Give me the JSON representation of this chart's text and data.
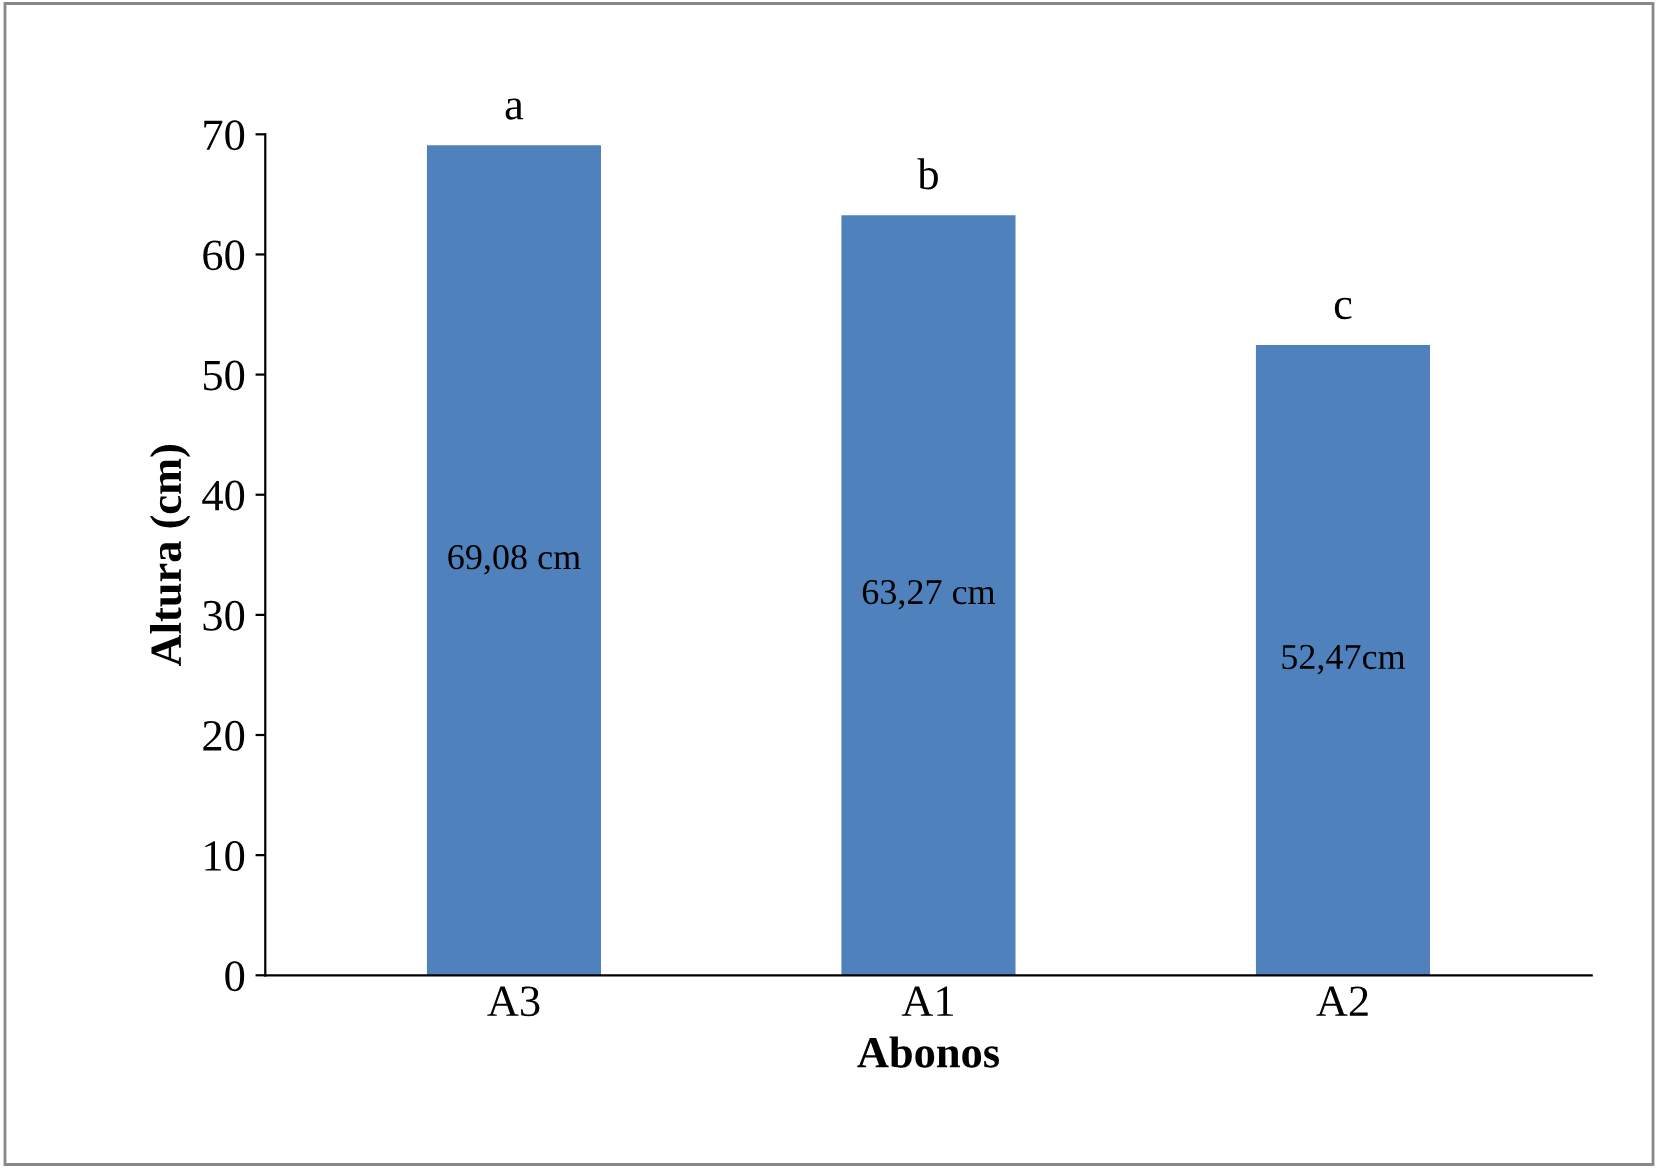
{
  "chart_data": {
    "type": "bar",
    "xlabel": "Abonos",
    "ylabel": "Altura (cm)",
    "categories": [
      "A3",
      "A1",
      "A2"
    ],
    "values": [
      69.08,
      63.27,
      52.47
    ],
    "color": "#4f81bd",
    "value_labels": [
      "69,08 cm",
      "63,27 cm",
      "52,47cm"
    ],
    "annotations": [
      {
        "text": "a",
        "x": "A3",
        "y": 69.08
      },
      {
        "text": "b",
        "x": "A1",
        "y": 63.27
      },
      {
        "text": "c",
        "x": "A2",
        "y": 52.47
      }
    ],
    "ylim": [
      0,
      70
    ],
    "yticks": [
      0,
      10,
      20,
      30,
      40,
      50,
      60,
      70
    ],
    "grid": false,
    "legend": false
  }
}
